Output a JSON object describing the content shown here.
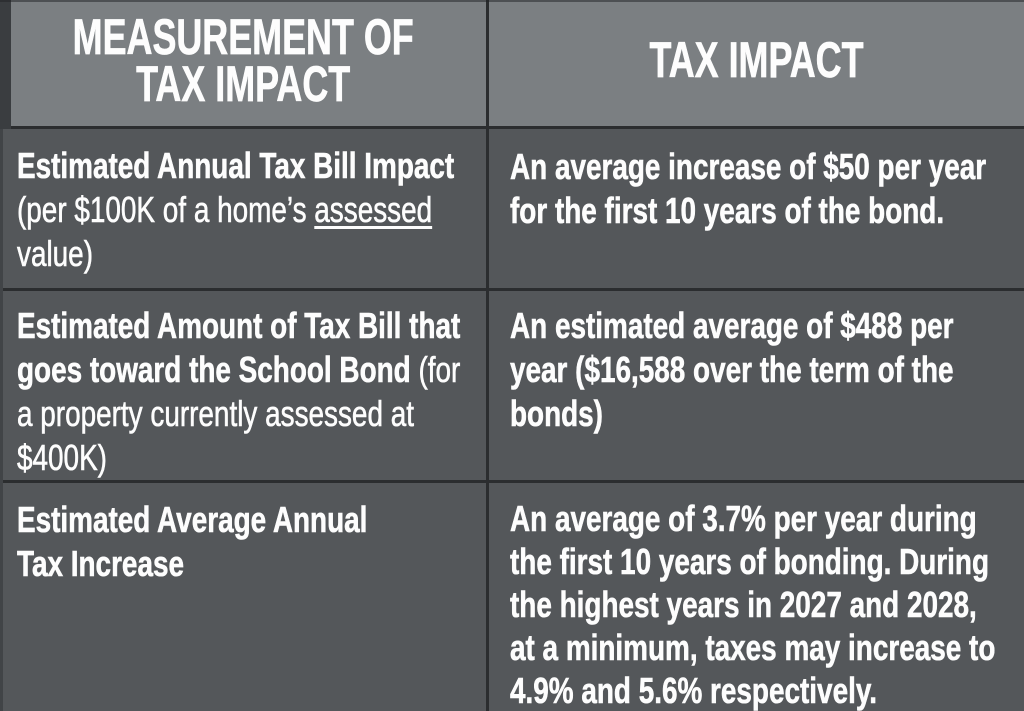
{
  "table": {
    "header": {
      "col1": "MEASUREMENT OF\nTAX IMPACT",
      "col2": "TAX IMPACT"
    },
    "rows": [
      {
        "measurement": {
          "bold": "Estimated Annual Tax Bill Impact\n",
          "regular_prefix": "(per $100K of a home’s ",
          "underlined": "assessed",
          "regular_suffix": "\nvalue)"
        },
        "impact": "An average increase of $50 per year\nfor the first 10 years of the bond."
      },
      {
        "measurement": {
          "bold": "Estimated Amount of Tax Bill that\ngoes toward the School Bond ",
          "regular": "(for\na property currently assessed at\n$400K)"
        },
        "impact": "An estimated average of $488 per\nyear ($16,588 over the term of the\nbonds)"
      },
      {
        "measurement": {
          "bold": "Estimated Average Annual\nTax Increase"
        },
        "impact": "An average of 3.7% per year during\nthe first 10 years of bonding. During\nthe highest years in 2027 and 2028,\nat a minimum, taxes may increase to\n4.9% and 5.6% respectively."
      }
    ],
    "colors": {
      "header_bg": "#7b7f82",
      "row_bg": "#54575a",
      "divider": "#2b2d2f",
      "text": "#fdfdfd"
    }
  }
}
